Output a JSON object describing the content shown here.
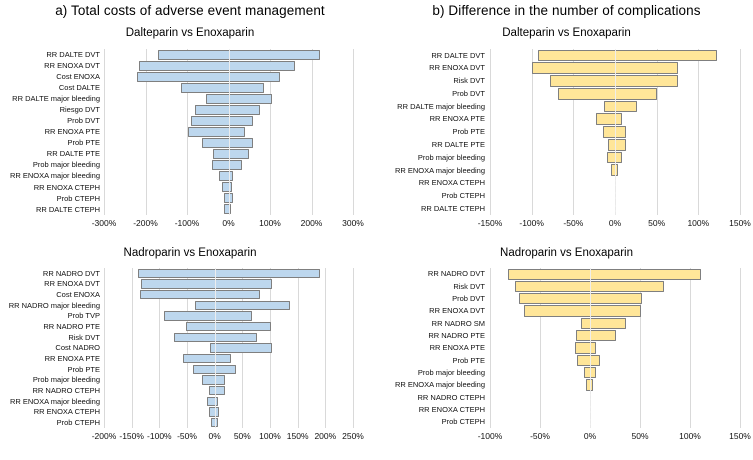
{
  "figure": {
    "title_a": "a) Total costs of adverse event management",
    "title_b": "b) Difference in the number of complications"
  },
  "colors": {
    "blue_fill": "#BDD7EE",
    "yellow_fill": "#FFE699",
    "bar_border": "#7F7F7F",
    "gridline": "#D9D9D9",
    "text": "#000000",
    "background": "#FFFFFF"
  },
  "chart_data": [
    {
      "type": "bar",
      "subtype": "tornado",
      "title": "Dalteparin vs Enoxaparin",
      "column": "a",
      "unit": "%",
      "fill": "#BDD7EE",
      "xlim": [
        -300,
        300
      ],
      "ticks": [
        {
          "v": -300,
          "label": "-300%"
        },
        {
          "v": -200,
          "label": "-200%"
        },
        {
          "v": -100,
          "label": "-100%"
        },
        {
          "v": 0,
          "label": "0%"
        },
        {
          "v": 100,
          "label": "100%"
        },
        {
          "v": 200,
          "label": "200%"
        },
        {
          "v": 300,
          "label": "300%"
        }
      ],
      "rows": [
        {
          "label": "RR DALTE DVT",
          "low": -170,
          "high": 220
        },
        {
          "label": "RR ENOXA DVT",
          "low": -215,
          "high": 160
        },
        {
          "label": "Cost ENOXA",
          "low": -220,
          "high": 125
        },
        {
          "label": "Cost DALTE",
          "low": -115,
          "high": 85
        },
        {
          "label": "RR DALTE major bleeding",
          "low": -55,
          "high": 105
        },
        {
          "label": "Riesgo DVT",
          "low": -80,
          "high": 75
        },
        {
          "label": "Prob DVT",
          "low": -90,
          "high": 60
        },
        {
          "label": "RR ENOXA PTE",
          "low": -97,
          "high": 40
        },
        {
          "label": "Prob PTE",
          "low": -65,
          "high": 60
        },
        {
          "label": "RR DALTE PTE",
          "low": -37,
          "high": 50
        },
        {
          "label": "Prob major bleeding",
          "low": -39,
          "high": 33
        },
        {
          "label": "RR ENOXA major bleeding",
          "low": -22,
          "high": 11
        },
        {
          "label": "RR ENOXA CTEPH",
          "low": -15,
          "high": 8
        },
        {
          "label": "Prob CTEPH",
          "low": -12,
          "high": 10
        },
        {
          "label": "RR DALTE CTEPH",
          "low": -10,
          "high": 7
        }
      ]
    },
    {
      "type": "bar",
      "subtype": "tornado",
      "title": "Dalteparin vs Enoxaparin",
      "column": "b",
      "unit": "%",
      "fill": "#FFE699",
      "xlim": [
        -150,
        150
      ],
      "ticks": [
        {
          "v": -150,
          "label": "-150%"
        },
        {
          "v": -100,
          "label": "-100%"
        },
        {
          "v": -50,
          "label": "-50%"
        },
        {
          "v": 0,
          "label": "0%"
        },
        {
          "v": 50,
          "label": "50%"
        },
        {
          "v": 100,
          "label": "100%"
        },
        {
          "v": 150,
          "label": "150%"
        }
      ],
      "rows": [
        {
          "label": "RR DALTE DVT",
          "low": -93,
          "high": 122
        },
        {
          "label": "RR ENOXA DVT",
          "low": -100,
          "high": 76
        },
        {
          "label": "Risk DVT",
          "low": -78,
          "high": 76
        },
        {
          "label": "Prob DVT",
          "low": -68,
          "high": 50
        },
        {
          "label": "RR DALTE major bleeding",
          "low": -13,
          "high": 27
        },
        {
          "label": "RR ENOXA PTE",
          "low": -23,
          "high": 9
        },
        {
          "label": "Prob PTE",
          "low": -15,
          "high": 13
        },
        {
          "label": "RR DALTE PTE",
          "low": -9,
          "high": 13
        },
        {
          "label": "Prob major bleeding",
          "low": -10,
          "high": 8
        },
        {
          "label": "RR ENOXA major bleeding",
          "low": -4.5,
          "high": 3.7
        },
        {
          "label": "RR ENOXA CTEPH",
          "low": -0.5,
          "high": 0.5
        },
        {
          "label": "Prob CTEPH",
          "low": -0.5,
          "high": 0.5
        },
        {
          "label": "RR DALTE CTEPH",
          "low": -0.5,
          "high": 0.5
        }
      ]
    },
    {
      "type": "bar",
      "subtype": "tornado",
      "title": "Nadroparin vs Enoxaparin",
      "column": "a",
      "unit": "%",
      "fill": "#BDD7EE",
      "xlim": [
        -200,
        250
      ],
      "ticks": [
        {
          "v": -200,
          "label": "-200%"
        },
        {
          "v": -150,
          "label": "-150%"
        },
        {
          "v": -100,
          "label": "-100%"
        },
        {
          "v": -50,
          "label": "-50%"
        },
        {
          "v": 0,
          "label": "0%"
        },
        {
          "v": 50,
          "label": "50%"
        },
        {
          "v": 100,
          "label": "100%"
        },
        {
          "v": 150,
          "label": "150%"
        },
        {
          "v": 200,
          "label": "200%"
        },
        {
          "v": 250,
          "label": "250%"
        }
      ],
      "rows": [
        {
          "label": "RR NADRO DVT",
          "low": -138,
          "high": 190
        },
        {
          "label": "RR ENOXA DVT",
          "low": -134,
          "high": 104
        },
        {
          "label": "Cost ENOXA",
          "low": -135,
          "high": 82
        },
        {
          "label": "RR NADRO major bleeding",
          "low": -36,
          "high": 137
        },
        {
          "label": "Prob TVP",
          "low": -91,
          "high": 68
        },
        {
          "label": "RR NADRO PTE",
          "low": -51,
          "high": 101
        },
        {
          "label": "Risk DVT",
          "low": -73,
          "high": 77
        },
        {
          "label": "Cost NADRO",
          "low": -9,
          "high": 104
        },
        {
          "label": "RR ENOXA PTE",
          "low": -58,
          "high": 30
        },
        {
          "label": "Prob PTE",
          "low": -40,
          "high": 38
        },
        {
          "label": "Prob major bleeding",
          "low": -22,
          "high": 19
        },
        {
          "label": "RR NADRO CTEPH",
          "low": -11,
          "high": 18
        },
        {
          "label": "RR ENOXA major bleeding",
          "low": -14,
          "high": 6
        },
        {
          "label": "RR ENOXA CTEPH",
          "low": -11,
          "high": 7
        },
        {
          "label": "Prob CTEPH",
          "low": -7,
          "high": 6
        }
      ]
    },
    {
      "type": "bar",
      "subtype": "tornado",
      "title": "Nadroparin vs Enoxaparin",
      "column": "b",
      "unit": "%",
      "fill": "#FFE699",
      "xlim": [
        -100,
        150
      ],
      "ticks": [
        {
          "v": -100,
          "label": "-100%"
        },
        {
          "v": -50,
          "label": "-50%"
        },
        {
          "v": 0,
          "label": "0%"
        },
        {
          "v": 50,
          "label": "50%"
        },
        {
          "v": 100,
          "label": "100%"
        },
        {
          "v": 150,
          "label": "150%"
        }
      ],
      "rows": [
        {
          "label": "RR NADRO DVT",
          "low": -82,
          "high": 111
        },
        {
          "label": "Risk DVT",
          "low": -75,
          "high": 74
        },
        {
          "label": "Prob DVT",
          "low": -71,
          "high": 52
        },
        {
          "label": "RR ENOXA DVT",
          "low": -66,
          "high": 51
        },
        {
          "label": "RR NADRO SM",
          "low": -9,
          "high": 36
        },
        {
          "label": "RR NADRO PTE",
          "low": -14,
          "high": 26
        },
        {
          "label": "RR ENOXA PTE",
          "low": -15,
          "high": 6
        },
        {
          "label": "Prob PTE",
          "low": -13,
          "high": 10
        },
        {
          "label": "Prob major bleeding",
          "low": -6,
          "high": 6
        },
        {
          "label": "RR ENOXA major bleeding",
          "low": -4,
          "high": 3
        },
        {
          "label": "RR NADRO CTEPH",
          "low": -0.5,
          "high": 0.5
        },
        {
          "label": "RR ENOXA CTEPH",
          "low": -0.5,
          "high": 0.5
        },
        {
          "label": "Prob CTEPH",
          "low": -0.5,
          "high": 0.5
        }
      ]
    }
  ]
}
